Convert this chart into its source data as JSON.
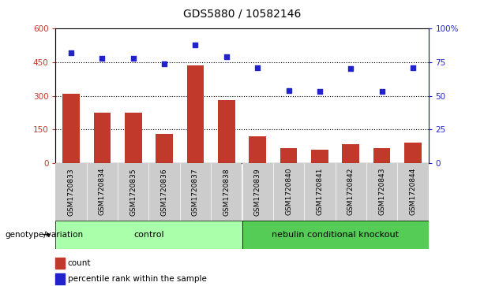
{
  "title": "GDS5880 / 10582146",
  "categories": [
    "GSM1720833",
    "GSM1720834",
    "GSM1720835",
    "GSM1720836",
    "GSM1720837",
    "GSM1720838",
    "GSM1720839",
    "GSM1720840",
    "GSM1720841",
    "GSM1720842",
    "GSM1720843",
    "GSM1720844"
  ],
  "counts": [
    310,
    225,
    225,
    130,
    435,
    280,
    120,
    65,
    60,
    85,
    65,
    90
  ],
  "percentiles": [
    82,
    78,
    78,
    74,
    88,
    79,
    71,
    54,
    53,
    70,
    53,
    71
  ],
  "bar_color": "#c0392b",
  "dot_color": "#2222cc",
  "ylim_left": [
    0,
    600
  ],
  "ylim_right": [
    0,
    100
  ],
  "yticks_left": [
    0,
    150,
    300,
    450,
    600
  ],
  "yticks_right": [
    0,
    25,
    50,
    75,
    100
  ],
  "ytick_labels_right": [
    "0",
    "25",
    "50",
    "75",
    "100%"
  ],
  "grid_values": [
    150,
    300,
    450
  ],
  "group1_label": "control",
  "group2_label": "nebulin conditional knockout",
  "group1_color": "#aaffaa",
  "group2_color": "#55cc55",
  "xtick_bg_color": "#cccccc",
  "genotype_label": "genotype/variation",
  "legend_count_label": "count",
  "legend_pct_label": "percentile rank within the sample",
  "title_fontsize": 10,
  "tick_fontsize": 7.5,
  "xtick_fontsize": 6.5
}
